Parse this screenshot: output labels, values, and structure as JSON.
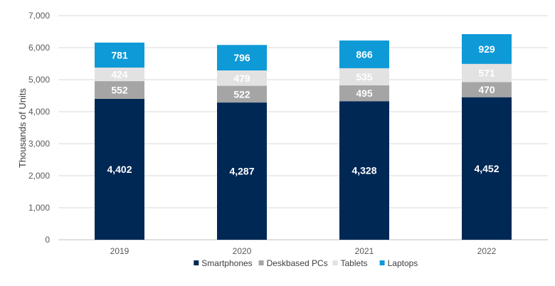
{
  "chart_data": {
    "type": "bar",
    "stacked": true,
    "title": "",
    "xlabel": "",
    "ylabel": "Thousands of Units",
    "ylim": [
      0,
      7000
    ],
    "yticks": [
      0,
      1000,
      2000,
      3000,
      4000,
      5000,
      6000,
      7000
    ],
    "ytick_labels": [
      "0",
      "1,000",
      "2,000",
      "3,000",
      "4,000",
      "5,000",
      "6,000",
      "7,000"
    ],
    "grid": true,
    "legend_position": "bottom",
    "categories": [
      "2019",
      "2020",
      "2021",
      "2022"
    ],
    "series": [
      {
        "name": "Smartphones",
        "color": "#002855",
        "label_color": "#ffffff",
        "values": [
          4402,
          4287,
          4328,
          4452
        ],
        "labels": [
          "4,402",
          "4,287",
          "4,328",
          "4,452"
        ]
      },
      {
        "name": "Deskbased PCs",
        "color": "#a5a5a5",
        "label_color": "#ffffff",
        "values": [
          552,
          522,
          495,
          470
        ],
        "labels": [
          "552",
          "522",
          "495",
          "470"
        ]
      },
      {
        "name": "Tablets",
        "color": "#e2e2e2",
        "label_color": "#ffffff",
        "values": [
          424,
          479,
          535,
          571
        ],
        "labels": [
          "424",
          "479",
          "535",
          "571"
        ]
      },
      {
        "name": "Laptops",
        "color": "#0e9ad7",
        "label_color": "#ffffff",
        "values": [
          781,
          796,
          866,
          929
        ],
        "labels": [
          "781",
          "796",
          "866",
          "929"
        ]
      }
    ]
  }
}
